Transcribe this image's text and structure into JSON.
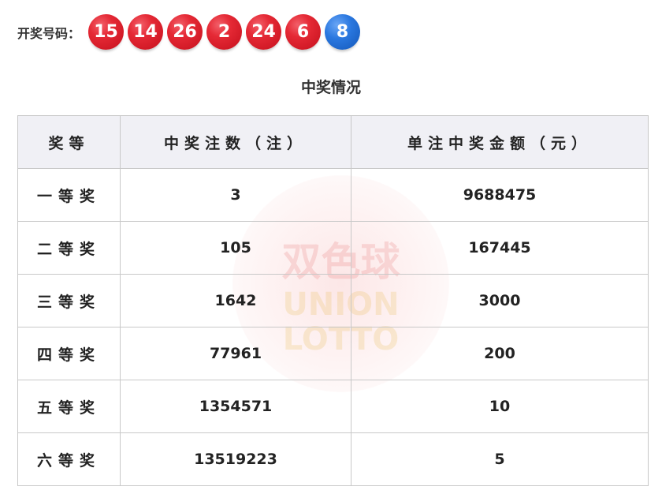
{
  "draw": {
    "label": "开奖号码：",
    "red_balls": [
      "15",
      "14",
      "26",
      "2",
      "24",
      "6"
    ],
    "blue_balls": [
      "8"
    ],
    "colors": {
      "red": "#e52935",
      "blue": "#2a78e0"
    }
  },
  "section_title": "中奖情况",
  "watermark": {
    "cn": "双色球",
    "en1": "UNION",
    "en2": "LOTTO"
  },
  "table": {
    "headers": [
      "奖等",
      "中奖注数（注）",
      "单注中奖金额（元）"
    ],
    "rows": [
      {
        "level": "一等奖",
        "count": "3",
        "amount": "9688475"
      },
      {
        "level": "二等奖",
        "count": "105",
        "amount": "167445"
      },
      {
        "level": "三等奖",
        "count": "1642",
        "amount": "3000"
      },
      {
        "level": "四等奖",
        "count": "77961",
        "amount": "200"
      },
      {
        "level": "五等奖",
        "count": "1354571",
        "amount": "10"
      },
      {
        "level": "六等奖",
        "count": "13519223",
        "amount": "5"
      }
    ]
  }
}
